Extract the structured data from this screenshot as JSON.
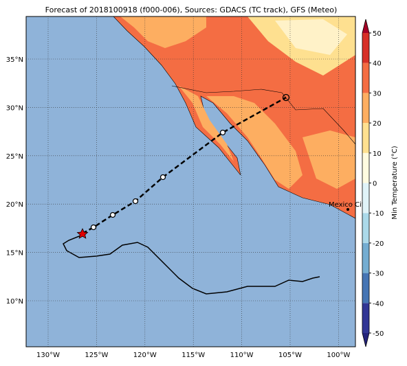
{
  "title": "Forecast of 2018100918 (f000-006), Sources: GDACS (TC track), GFS (Meteo)",
  "map": {
    "lon_labels": [
      "130°W",
      "125°W",
      "120°W",
      "115°W",
      "110°W",
      "105°W",
      "100°W"
    ],
    "lat_labels": [
      "35°N",
      "30°N",
      "25°N",
      "20°N",
      "15°N",
      "10°N"
    ],
    "city": "Mexico City"
  },
  "colorbar": {
    "label": "Min Temperature (°C)",
    "ticks": [
      50,
      40,
      30,
      20,
      10,
      0,
      -10,
      -20,
      -30,
      -40,
      -50
    ],
    "colors": [
      "#313695",
      "#4575b4",
      "#74add1",
      "#abd9e9",
      "#e0f3f8",
      "#fffbe0",
      "#fee090",
      "#fdae61",
      "#f46d43",
      "#d73027"
    ],
    "under_color": "#23237a",
    "over_color": "#a50026"
  }
}
